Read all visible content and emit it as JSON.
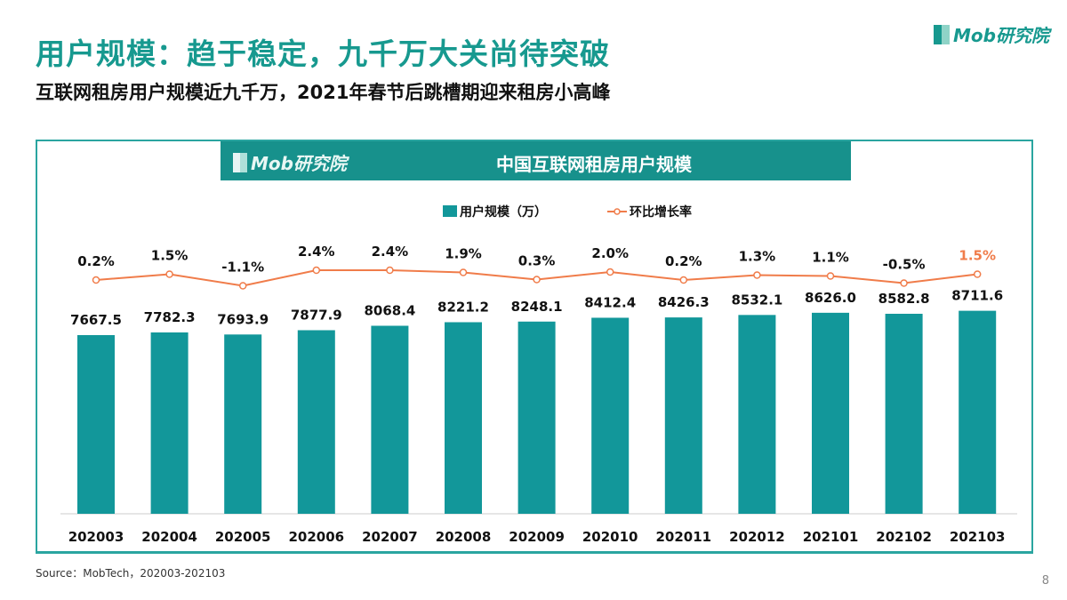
{
  "header": {
    "title": "用户规模：趋于稳定，九千万大关尚待突破",
    "subtitle": "互联网租房用户规模近九千万，2021年春节后跳槽期迎来租房小高峰",
    "logo": "Mob研究院"
  },
  "chart_data": {
    "type": "bar+line",
    "title": "中国互联网租房用户规模",
    "banner_logo": "Mob研究院",
    "categories": [
      "202003",
      "202004",
      "202005",
      "202006",
      "202007",
      "202008",
      "202009",
      "202010",
      "202011",
      "202012",
      "202101",
      "202102",
      "202103"
    ],
    "series": [
      {
        "name": "用户规模（万）",
        "type": "bar",
        "color": "#12979a",
        "values": [
          7667.5,
          7782.3,
          7693.9,
          7877.9,
          8068.4,
          8221.2,
          8248.1,
          8412.4,
          8426.3,
          8532.1,
          8626.0,
          8582.8,
          8711.6
        ],
        "labels": [
          "7667.5",
          "7782.3",
          "7693.9",
          "7877.9",
          "8068.4",
          "8221.2",
          "8248.1",
          "8412.4",
          "8426.3",
          "8532.1",
          "8626.0",
          "8582.8",
          "8711.6"
        ]
      },
      {
        "name": "环比增长率",
        "type": "line",
        "color": "#f07c4a",
        "values": [
          0.2,
          1.5,
          -1.1,
          2.4,
          2.4,
          1.9,
          0.3,
          2.0,
          0.2,
          1.3,
          1.1,
          -0.5,
          1.5
        ],
        "labels": [
          "0.2%",
          "1.5%",
          "-1.1%",
          "2.4%",
          "2.4%",
          "1.9%",
          "0.3%",
          "2.0%",
          "0.2%",
          "1.3%",
          "1.1%",
          "-0.5%",
          "1.5%"
        ],
        "highlight_last_label_color": "#f07c4a"
      }
    ],
    "legend": "top-center",
    "grid": false
  },
  "footer": {
    "source": "Source：MobTech，202003-202103",
    "page": "8"
  }
}
